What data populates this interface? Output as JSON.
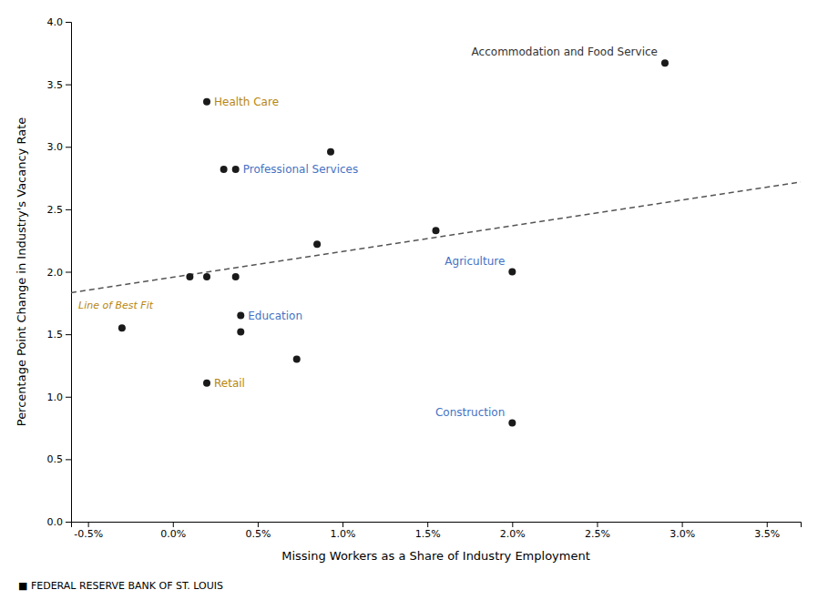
{
  "chart_data": {
    "type": "scatter",
    "xlabel": "Missing Workers as a Share of Industry Employment",
    "ylabel": "Percentage Point Change in Industry's Vacancy Rate",
    "footer": "■  FEDERAL RESERVE BANK OF ST. LOUIS",
    "xlim": [
      -0.006,
      0.037
    ],
    "ylim": [
      0.0,
      4.0
    ],
    "xticks": [
      {
        "value": -0.005,
        "label": "-0.5%"
      },
      {
        "value": 0.0,
        "label": "0.0%"
      },
      {
        "value": 0.005,
        "label": "0.5%"
      },
      {
        "value": 0.01,
        "label": "1.0%"
      },
      {
        "value": 0.015,
        "label": "1.5%"
      },
      {
        "value": 0.02,
        "label": "2.0%"
      },
      {
        "value": 0.025,
        "label": "2.5%"
      },
      {
        "value": 0.03,
        "label": "3.0%"
      },
      {
        "value": 0.035,
        "label": "3.5%"
      }
    ],
    "yticks": [
      {
        "value": 0.0,
        "label": "0.0"
      },
      0.5,
      {
        "value": 1.0,
        "label": "1.0"
      },
      1.5,
      {
        "value": 2.0,
        "label": "2.0"
      },
      2.5,
      {
        "value": 3.0,
        "label": "3.0"
      },
      3.5,
      {
        "value": 4.0,
        "label": "4.0"
      }
    ],
    "grid": false,
    "series": [
      {
        "type": "scatter",
        "marker": "circle",
        "color": "#1a1a1a",
        "x": [
          -0.003,
          0.001,
          0.002,
          0.002,
          0.002,
          0.003,
          0.0037,
          0.0037,
          0.004,
          0.004,
          0.0073,
          0.0085,
          0.0093,
          0.0155,
          0.02,
          0.02,
          0.029
        ],
        "values": [
          1.55,
          1.96,
          1.96,
          3.36,
          1.11,
          2.82,
          2.82,
          1.96,
          1.65,
          1.52,
          1.3,
          2.22,
          2.96,
          2.33,
          2.0,
          0.79,
          3.67
        ],
        "labels": [
          null,
          null,
          null,
          "Health Care",
          "Retail",
          null,
          "Professional Services",
          null,
          "Education",
          null,
          null,
          null,
          null,
          null,
          "Agriculture",
          "Construction",
          "Accommodation and Food Service"
        ],
        "label_colors": [
          null,
          null,
          null,
          "#b8860b",
          "#b8860b",
          null,
          "#4472c4",
          null,
          "#4472c4",
          null,
          null,
          null,
          null,
          null,
          "#4472c4",
          "#4472c4",
          "#333333"
        ]
      },
      {
        "type": "line",
        "name": "Line of Best Fit",
        "label_color": "#b8860b",
        "color": "#555555",
        "line_style": "dashed",
        "x": [
          -0.006,
          0.037
        ],
        "values": [
          1.8331,
          2.7183
        ]
      }
    ]
  }
}
